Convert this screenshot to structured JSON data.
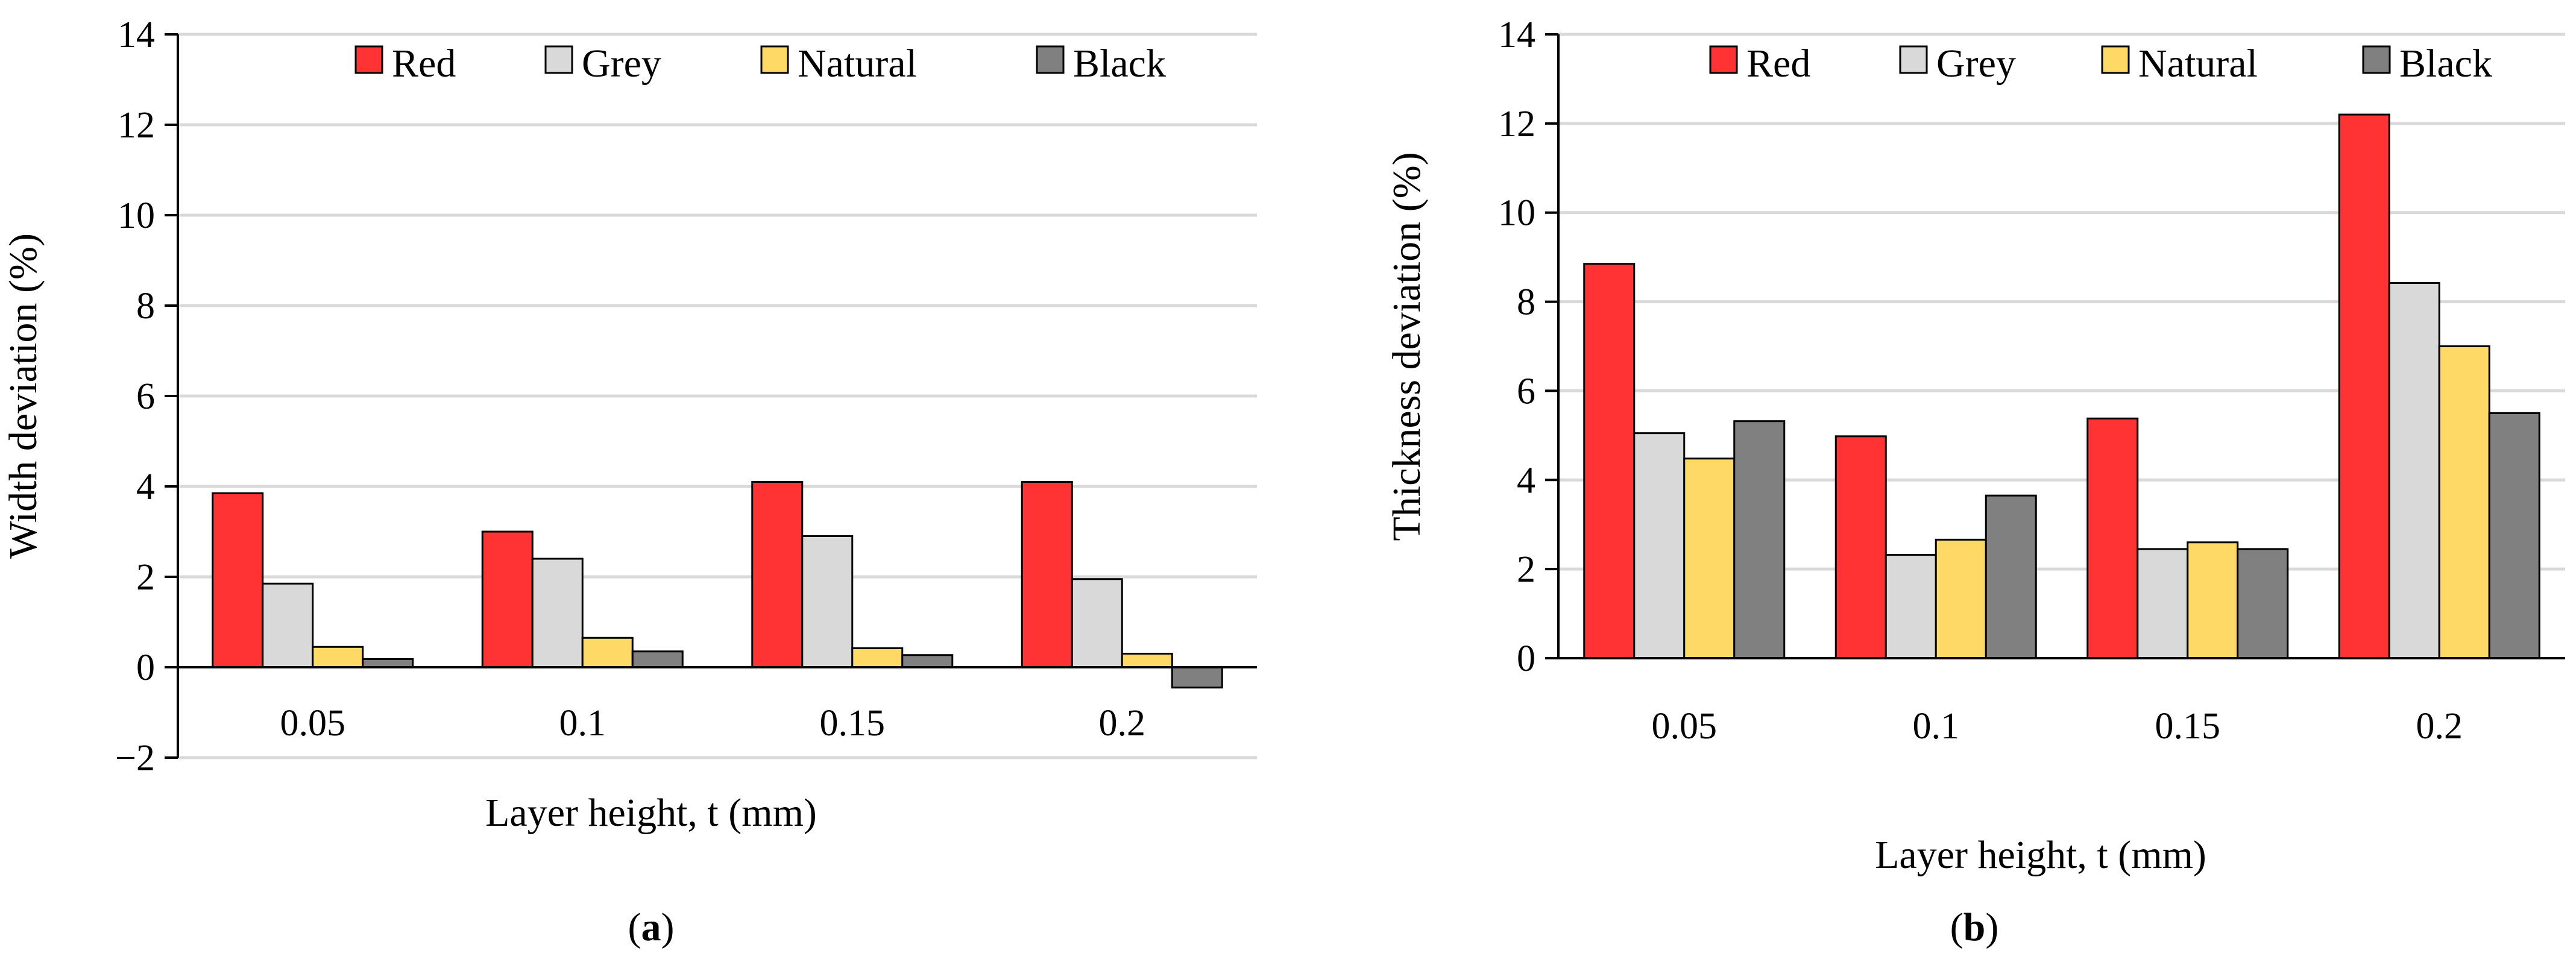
{
  "colors": {
    "Red": "#ff3333",
    "Grey": "#d9d9d9",
    "Natural": "#ffd966",
    "Black": "#808080",
    "grid": "#d9d9d9",
    "axis": "#000000"
  },
  "chart_data": [
    {
      "type": "bar",
      "panel_label": {
        "open": "(",
        "letter": "a",
        "close": ")"
      },
      "title": "",
      "xlabel": "Layer height, t (mm)",
      "ylabel": "Width deviation (%)",
      "ylim": [
        -2,
        14
      ],
      "yticks": [
        -2,
        0,
        2,
        4,
        6,
        8,
        10,
        12,
        14
      ],
      "ytick_labels": [
        "−2",
        "0",
        "2",
        "4",
        "6",
        "8",
        "10",
        "12",
        "14"
      ],
      "grid": true,
      "legend_position": "top",
      "categories": [
        "0.05",
        "0.1",
        "0.15",
        "0.2"
      ],
      "series": [
        {
          "name": "Red",
          "values": [
            3.85,
            3.0,
            4.1,
            4.1
          ]
        },
        {
          "name": "Grey",
          "values": [
            1.85,
            2.4,
            2.9,
            1.95
          ]
        },
        {
          "name": "Natural",
          "values": [
            0.45,
            0.65,
            0.42,
            0.3
          ]
        },
        {
          "name": "Black",
          "values": [
            0.18,
            0.35,
            0.27,
            -0.45
          ]
        }
      ]
    },
    {
      "type": "bar",
      "panel_label": {
        "open": "(",
        "letter": "b",
        "close": ")"
      },
      "title": "",
      "xlabel": "Layer height, t (mm)",
      "ylabel": "Thickness deviation (%)",
      "ylim": [
        0,
        14
      ],
      "yticks": [
        0,
        2,
        4,
        6,
        8,
        10,
        12,
        14
      ],
      "ytick_labels": [
        "0",
        "2",
        "4",
        "6",
        "8",
        "10",
        "12",
        "14"
      ],
      "grid": true,
      "legend_position": "top",
      "categories": [
        "0.05",
        "0.1",
        "0.15",
        "0.2"
      ],
      "series": [
        {
          "name": "Red",
          "values": [
            8.85,
            4.98,
            5.38,
            12.2
          ]
        },
        {
          "name": "Grey",
          "values": [
            5.05,
            2.32,
            2.45,
            8.42
          ]
        },
        {
          "name": "Natural",
          "values": [
            4.48,
            2.66,
            2.6,
            7.0
          ]
        },
        {
          "name": "Black",
          "values": [
            5.32,
            3.65,
            2.45,
            5.5
          ]
        }
      ]
    }
  ]
}
